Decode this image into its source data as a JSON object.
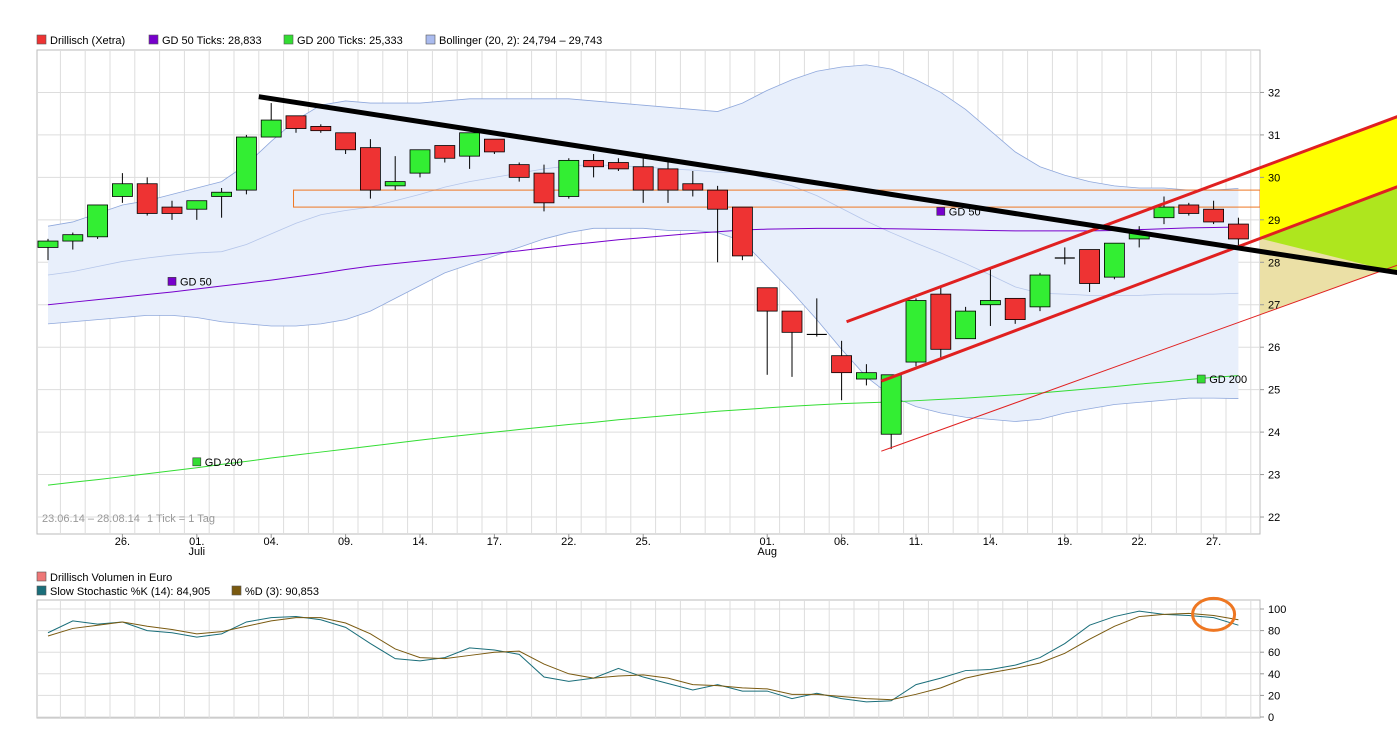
{
  "colors": {
    "up": "#33ee33",
    "down": "#ee3333",
    "gd50": "#7700cc",
    "gd200": "#33dd33",
    "bollinger_fill": "#e8effb",
    "bollinger_line": "#8fa8dc",
    "trendline": "#000000",
    "channel": "#e02020",
    "stoch_k": "#1a6e7a",
    "stoch_d": "#7a5a10",
    "highlight": "#ee7722",
    "grid": "#dddddd"
  },
  "chart_data": [
    {
      "type": "candlestick",
      "legend": [
        {
          "label": "Drillisch (Xetra)",
          "color": "#ee3333"
        },
        {
          "label": "GD 50 Ticks: 28,833",
          "color": "#7700cc"
        },
        {
          "label": "GD 200 Ticks: 25,333",
          "color": "#33dd33"
        },
        {
          "label": "Bollinger (20, 2): 24,794 – 29,743",
          "color": "#aabbee"
        }
      ],
      "date_range_label": "23.06.14 – 28.08.14",
      "tick_label": "1 Tick = 1 Tag",
      "x_ticks": [
        "26.",
        "01.",
        "04.",
        "09.",
        "14.",
        "17.",
        "22.",
        "25.",
        "01.",
        "06.",
        "11.",
        "14.",
        "19.",
        "22.",
        "27."
      ],
      "x_tick_index": [
        3,
        6,
        9,
        12,
        15,
        18,
        21,
        24,
        29,
        32,
        35,
        38,
        41,
        44,
        47
      ],
      "month_labels": [
        "Juli",
        "Aug"
      ],
      "month_label_index": [
        6,
        29
      ],
      "y_ticks": [
        22,
        23,
        24,
        25,
        26,
        27,
        28,
        29,
        30,
        31,
        32
      ],
      "ylim": [
        21.6,
        33.0
      ],
      "candles": [
        {
          "o": 28.35,
          "h": 28.55,
          "l": 28.05,
          "c": 28.5
        },
        {
          "o": 28.5,
          "h": 28.7,
          "l": 28.3,
          "c": 28.65
        },
        {
          "o": 28.6,
          "h": 29.35,
          "l": 28.55,
          "c": 29.35
        },
        {
          "o": 29.55,
          "h": 30.1,
          "l": 29.4,
          "c": 29.85
        },
        {
          "o": 29.85,
          "h": 30.0,
          "l": 29.1,
          "c": 29.15
        },
        {
          "o": 29.3,
          "h": 29.45,
          "l": 29.0,
          "c": 29.15
        },
        {
          "o": 29.25,
          "h": 29.45,
          "l": 29.0,
          "c": 29.45
        },
        {
          "o": 29.55,
          "h": 29.75,
          "l": 29.05,
          "c": 29.65
        },
        {
          "o": 29.7,
          "h": 31.0,
          "l": 29.6,
          "c": 30.95
        },
        {
          "o": 30.95,
          "h": 31.75,
          "l": 30.95,
          "c": 31.35
        },
        {
          "o": 31.45,
          "h": 31.45,
          "l": 31.05,
          "c": 31.15
        },
        {
          "o": 31.2,
          "h": 31.25,
          "l": 31.05,
          "c": 31.1
        },
        {
          "o": 31.05,
          "h": 31.05,
          "l": 30.55,
          "c": 30.65
        },
        {
          "o": 30.7,
          "h": 30.9,
          "l": 29.5,
          "c": 29.7
        },
        {
          "o": 29.8,
          "h": 30.5,
          "l": 29.7,
          "c": 29.9
        },
        {
          "o": 30.1,
          "h": 30.65,
          "l": 30.0,
          "c": 30.65
        },
        {
          "o": 30.75,
          "h": 30.75,
          "l": 30.35,
          "c": 30.45
        },
        {
          "o": 30.5,
          "h": 31.05,
          "l": 30.2,
          "c": 31.05
        },
        {
          "o": 30.9,
          "h": 30.9,
          "l": 30.55,
          "c": 30.6
        },
        {
          "o": 30.3,
          "h": 30.35,
          "l": 29.9,
          "c": 30.0
        },
        {
          "o": 30.1,
          "h": 30.3,
          "l": 29.2,
          "c": 29.4
        },
        {
          "o": 29.55,
          "h": 30.45,
          "l": 29.5,
          "c": 30.4
        },
        {
          "o": 30.4,
          "h": 30.55,
          "l": 30.0,
          "c": 30.25
        },
        {
          "o": 30.35,
          "h": 30.45,
          "l": 30.15,
          "c": 30.2
        },
        {
          "o": 30.25,
          "h": 30.45,
          "l": 29.4,
          "c": 29.7
        },
        {
          "o": 30.2,
          "h": 30.45,
          "l": 29.4,
          "c": 29.7
        },
        {
          "o": 29.85,
          "h": 30.15,
          "l": 29.55,
          "c": 29.7
        },
        {
          "o": 29.7,
          "h": 29.8,
          "l": 28.0,
          "c": 29.25
        },
        {
          "o": 29.3,
          "h": 29.3,
          "l": 28.05,
          "c": 28.15
        },
        {
          "o": 27.4,
          "h": 27.4,
          "l": 25.35,
          "c": 26.85
        },
        {
          "o": 26.85,
          "h": 26.85,
          "l": 25.3,
          "c": 26.35
        },
        {
          "o": 26.3,
          "h": 27.15,
          "l": 26.25,
          "c": 26.3
        },
        {
          "o": 25.8,
          "h": 26.15,
          "l": 24.75,
          "c": 25.4
        },
        {
          "o": 25.25,
          "h": 25.6,
          "l": 25.1,
          "c": 25.4
        },
        {
          "o": 23.95,
          "h": 25.35,
          "l": 23.6,
          "c": 25.35
        },
        {
          "o": 25.65,
          "h": 27.15,
          "l": 25.55,
          "c": 27.1
        },
        {
          "o": 27.25,
          "h": 27.4,
          "l": 25.75,
          "c": 25.95
        },
        {
          "o": 26.2,
          "h": 26.95,
          "l": 26.2,
          "c": 26.85
        },
        {
          "o": 27.0,
          "h": 27.85,
          "l": 26.5,
          "c": 27.1
        },
        {
          "o": 27.15,
          "h": 27.15,
          "l": 26.55,
          "c": 26.65
        },
        {
          "o": 26.95,
          "h": 27.75,
          "l": 26.85,
          "c": 27.7
        },
        {
          "o": 28.1,
          "h": 28.35,
          "l": 27.95,
          "c": 28.1
        },
        {
          "o": 28.3,
          "h": 28.3,
          "l": 27.3,
          "c": 27.5
        },
        {
          "o": 27.65,
          "h": 28.45,
          "l": 27.6,
          "c": 28.45
        },
        {
          "o": 28.55,
          "h": 28.85,
          "l": 28.35,
          "c": 28.7
        },
        {
          "o": 29.05,
          "h": 29.55,
          "l": 28.9,
          "c": 29.3
        },
        {
          "o": 29.35,
          "h": 29.4,
          "l": 29.1,
          "c": 29.15
        },
        {
          "o": 29.25,
          "h": 29.45,
          "l": 28.9,
          "c": 28.95
        },
        {
          "o": 28.9,
          "h": 29.05,
          "l": 28.3,
          "c": 28.55
        }
      ],
      "gd50": [
        27.0,
        27.06,
        27.12,
        27.18,
        27.24,
        27.3,
        27.37,
        27.44,
        27.51,
        27.58,
        27.66,
        27.74,
        27.83,
        27.91,
        27.97,
        28.03,
        28.09,
        28.15,
        28.21,
        28.27,
        28.34,
        28.41,
        28.47,
        28.53,
        28.58,
        28.63,
        28.68,
        28.72,
        28.76,
        28.78,
        28.79,
        28.8,
        28.8,
        28.8,
        28.79,
        28.78,
        28.77,
        28.76,
        28.75,
        28.74,
        28.74,
        28.74,
        28.74,
        28.75,
        28.77,
        28.79,
        28.81,
        28.82,
        28.83
      ],
      "gd200": [
        22.75,
        22.82,
        22.88,
        22.95,
        23.02,
        23.09,
        23.16,
        23.24,
        23.31,
        23.39,
        23.46,
        23.53,
        23.6,
        23.67,
        23.74,
        23.81,
        23.88,
        23.94,
        24.0,
        24.06,
        24.12,
        24.18,
        24.23,
        24.29,
        24.34,
        24.39,
        24.44,
        24.49,
        24.53,
        24.57,
        24.61,
        24.64,
        24.67,
        24.69,
        24.71,
        24.74,
        24.77,
        24.8,
        24.84,
        24.88,
        24.92,
        24.97,
        25.02,
        25.07,
        25.13,
        25.18,
        25.24,
        25.29,
        25.33
      ],
      "bollinger_upper": [
        28.85,
        28.95,
        29.15,
        29.35,
        29.45,
        29.6,
        29.75,
        29.9,
        30.3,
        30.85,
        31.35,
        31.7,
        31.8,
        31.75,
        31.75,
        31.75,
        31.8,
        31.85,
        31.85,
        31.85,
        31.85,
        31.85,
        31.8,
        31.75,
        31.7,
        31.65,
        31.6,
        31.55,
        31.75,
        32.05,
        32.3,
        32.5,
        32.6,
        32.65,
        32.55,
        32.3,
        32.0,
        31.6,
        31.1,
        30.6,
        30.25,
        30.05,
        29.9,
        29.8,
        29.75,
        29.75,
        29.7,
        29.7,
        29.74
      ],
      "bollinger_lower": [
        26.55,
        26.6,
        26.65,
        26.7,
        26.75,
        26.75,
        26.7,
        26.6,
        26.55,
        26.5,
        26.5,
        26.55,
        26.65,
        26.85,
        27.15,
        27.45,
        27.75,
        27.95,
        28.15,
        28.35,
        28.55,
        28.7,
        28.8,
        28.8,
        28.8,
        28.75,
        28.75,
        28.7,
        28.5,
        27.9,
        27.3,
        26.65,
        25.95,
        25.3,
        24.85,
        24.6,
        24.45,
        24.35,
        24.3,
        24.25,
        24.3,
        24.45,
        24.55,
        24.65,
        24.7,
        24.75,
        24.8,
        24.8,
        24.79
      ],
      "bollinger_mid": [
        27.7,
        27.78,
        27.9,
        28.02,
        28.1,
        28.17,
        28.22,
        28.25,
        28.42,
        28.67,
        28.92,
        29.12,
        29.22,
        29.3,
        29.45,
        29.6,
        29.77,
        29.9,
        30.0,
        30.1,
        30.2,
        30.27,
        30.3,
        30.27,
        30.25,
        30.2,
        30.17,
        30.12,
        30.12,
        29.97,
        29.8,
        29.57,
        29.27,
        28.97,
        28.7,
        28.45,
        28.22,
        27.97,
        27.7,
        27.42,
        27.27,
        27.25,
        27.22,
        27.22,
        27.22,
        27.25,
        27.25,
        27.25,
        27.27
      ],
      "annotations": [
        {
          "label": "GD 50",
          "i": 5,
          "v": 27.55,
          "color": "#7700cc"
        },
        {
          "label": "GD 200",
          "i": 6,
          "v": 23.3,
          "color": "#33dd33"
        },
        {
          "label": "GD 50",
          "i": 36,
          "v": 29.2,
          "color": "#7700cc"
        },
        {
          "label": "GD 200",
          "i": 46.5,
          "v": 25.25,
          "color": "#33dd33"
        }
      ],
      "trendline": {
        "from": [
          8.5,
          31.9
        ],
        "to": [
          54.5,
          27.75
        ]
      },
      "channel_upper": {
        "from": [
          32.2,
          26.6
        ],
        "to": [
          54.5,
          31.45
        ]
      },
      "channel_middle": {
        "from": [
          33.6,
          25.2
        ],
        "to": [
          54.5,
          29.8
        ]
      },
      "channel_lower": {
        "from": [
          33.6,
          23.55
        ],
        "to": [
          54.5,
          27.95
        ]
      },
      "resistance_zone": [
        29.3,
        29.7
      ],
      "resistance_zone_start": 9.9
    },
    {
      "type": "line",
      "legend": [
        {
          "label": "Drillisch Volumen in Euro",
          "color": "#ee7777"
        },
        {
          "label": "Slow Stochastic %K (14): 84,905",
          "color": "#1a6e7a"
        },
        {
          "label": "%D (3): 90,853",
          "color": "#7a5a10"
        }
      ],
      "y_ticks": [
        0,
        20,
        40,
        60,
        80,
        100
      ],
      "ylim": [
        0,
        100
      ],
      "series": [
        {
          "name": "Slow Stochastic %K (14): 84,905",
          "values": [
            78,
            89,
            86,
            88,
            80,
            78,
            74,
            77,
            88,
            92,
            93,
            90,
            83,
            68,
            54,
            52,
            55,
            64,
            62,
            58,
            37,
            33,
            36,
            45,
            37,
            31,
            25,
            30,
            24,
            24,
            17,
            22,
            17,
            14,
            15,
            30,
            36,
            43,
            44,
            48,
            55,
            68,
            85,
            93,
            98,
            95,
            94,
            92,
            85
          ]
        },
        {
          "name": "%D (3): 90,853",
          "values": [
            75,
            82,
            85,
            88,
            84,
            81,
            77,
            79,
            84,
            89,
            92,
            92,
            87,
            77,
            63,
            55,
            54,
            57,
            60,
            61,
            49,
            40,
            36,
            38,
            39,
            36,
            30,
            29,
            27,
            26,
            21,
            21,
            19,
            17,
            16,
            21,
            27,
            36,
            41,
            45,
            50,
            59,
            72,
            84,
            93,
            95,
            96,
            94,
            90
          ]
        }
      ],
      "highlight": {
        "i": 47,
        "v": 95
      }
    }
  ]
}
